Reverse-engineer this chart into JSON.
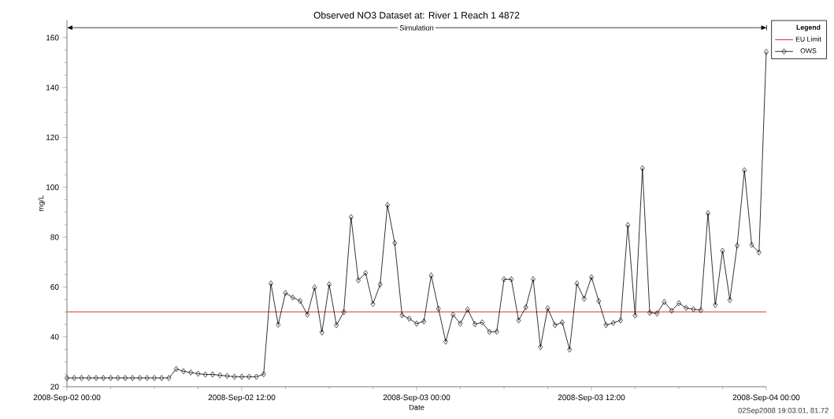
{
  "chart_data": {
    "type": "line",
    "title": "Observed NO3 Dataset at: River 1 Reach 1 4872",
    "xlabel": "Date",
    "ylabel": "mg/L",
    "legend_title": "Legend",
    "annotations": [
      "Simulation",
      "02Sep2008  19:03:01, 81.72"
    ],
    "xlim": [
      "2008-09-02T00:00",
      "2008-09-04T00:00"
    ],
    "xticks": [
      {
        "value": "2008-09-02T00:00",
        "label": "2008-Sep-02 00:00"
      },
      {
        "value": "2008-09-02T12:00",
        "label": "2008-Sep-02 12:00"
      },
      {
        "value": "2008-09-03T00:00",
        "label": "2008-Sep-03 00:00"
      },
      {
        "value": "2008-09-03T12:00",
        "label": "2008-Sep-03 12:00"
      },
      {
        "value": "2008-09-04T00:00",
        "label": "2008-Sep-04 00:00"
      }
    ],
    "ylim": [
      20,
      167
    ],
    "yticks": [
      20,
      40,
      60,
      80,
      100,
      120,
      140,
      160
    ],
    "x": [
      "2008-09-02T00:00",
      "2008-09-02T00:30",
      "2008-09-02T01:00",
      "2008-09-02T01:30",
      "2008-09-02T02:00",
      "2008-09-02T02:30",
      "2008-09-02T03:00",
      "2008-09-02T03:30",
      "2008-09-02T04:00",
      "2008-09-02T04:30",
      "2008-09-02T05:00",
      "2008-09-02T05:30",
      "2008-09-02T06:00",
      "2008-09-02T06:30",
      "2008-09-02T07:00",
      "2008-09-02T07:30",
      "2008-09-02T08:00",
      "2008-09-02T08:30",
      "2008-09-02T09:00",
      "2008-09-02T09:30",
      "2008-09-02T10:00",
      "2008-09-02T10:30",
      "2008-09-02T11:00",
      "2008-09-02T11:30",
      "2008-09-02T12:00",
      "2008-09-02T12:30",
      "2008-09-02T13:00",
      "2008-09-02T13:30",
      "2008-09-02T14:00",
      "2008-09-02T14:30",
      "2008-09-02T15:00",
      "2008-09-02T15:30",
      "2008-09-02T16:00",
      "2008-09-02T16:30",
      "2008-09-02T17:00",
      "2008-09-02T17:30",
      "2008-09-02T18:00",
      "2008-09-02T18:30",
      "2008-09-02T19:00",
      "2008-09-02T19:30",
      "2008-09-02T20:00",
      "2008-09-02T20:30",
      "2008-09-02T21:00",
      "2008-09-02T21:30",
      "2008-09-02T22:00",
      "2008-09-02T22:30",
      "2008-09-02T23:00",
      "2008-09-02T23:30",
      "2008-09-03T00:00",
      "2008-09-03T00:30",
      "2008-09-03T01:00",
      "2008-09-03T01:30",
      "2008-09-03T02:00",
      "2008-09-03T02:30",
      "2008-09-03T03:00",
      "2008-09-03T03:30",
      "2008-09-03T04:00",
      "2008-09-03T04:30",
      "2008-09-03T05:00",
      "2008-09-03T05:30",
      "2008-09-03T06:00",
      "2008-09-03T06:30",
      "2008-09-03T07:00",
      "2008-09-03T07:30",
      "2008-09-03T08:00",
      "2008-09-03T08:30",
      "2008-09-03T09:00",
      "2008-09-03T09:30",
      "2008-09-03T10:00",
      "2008-09-03T10:30",
      "2008-09-03T11:00",
      "2008-09-03T11:30",
      "2008-09-03T12:00",
      "2008-09-03T12:30",
      "2008-09-03T13:00",
      "2008-09-03T13:30",
      "2008-09-03T14:00",
      "2008-09-03T14:30",
      "2008-09-03T15:00",
      "2008-09-03T15:30",
      "2008-09-03T16:00",
      "2008-09-03T16:30",
      "2008-09-03T17:00",
      "2008-09-03T17:30",
      "2008-09-03T18:00",
      "2008-09-03T18:30",
      "2008-09-03T19:00",
      "2008-09-03T19:30",
      "2008-09-03T20:00",
      "2008-09-03T20:30",
      "2008-09-03T21:00",
      "2008-09-03T21:30",
      "2008-09-03T22:00",
      "2008-09-03T22:30",
      "2008-09-03T23:00",
      "2008-09-03T23:30",
      "2008-09-04T00:00"
    ],
    "series": [
      {
        "name": "OWS",
        "color": "#000000",
        "values": [
          23.5,
          23.5,
          23.5,
          23.5,
          23.5,
          23.5,
          23.5,
          23.5,
          23.5,
          23.5,
          23.5,
          23.5,
          23.5,
          23.5,
          23.5,
          27.1,
          26.2,
          25.7,
          25.2,
          24.9,
          24.9,
          24.6,
          24.3,
          24,
          24,
          24,
          24,
          25,
          61.4,
          44.9,
          57.6,
          55.8,
          54.4,
          48.9,
          59.8,
          41.8,
          61,
          44.7,
          49.9,
          88,
          62.7,
          65.6,
          53.2,
          61,
          92.9,
          77.6,
          48.7,
          47.3,
          45.3,
          46.2,
          64.6,
          51.3,
          38.1,
          48.9,
          45.3,
          51,
          45.1,
          45.8,
          42,
          42.1,
          63.1,
          63.1,
          46.6,
          51.9,
          63.1,
          35.9,
          51.5,
          44.7,
          45.8,
          34.9,
          61.4,
          55.3,
          63.9,
          54.4,
          44.7,
          45.6,
          46.6,
          84.8,
          48.6,
          107.6,
          49.7,
          49.4,
          54,
          50.5,
          53.5,
          51.6,
          51.1,
          50.7,
          89.6,
          52.8,
          74.5,
          54.8,
          76.6,
          106.8,
          76.9,
          73.9,
          154.3
        ]
      }
    ],
    "ref_lines": [
      {
        "axis": "y",
        "value": 50,
        "label": "EU Limit",
        "color": "#e03030"
      }
    ],
    "marker": "diamond",
    "legend": "top right",
    "grid": false
  }
}
